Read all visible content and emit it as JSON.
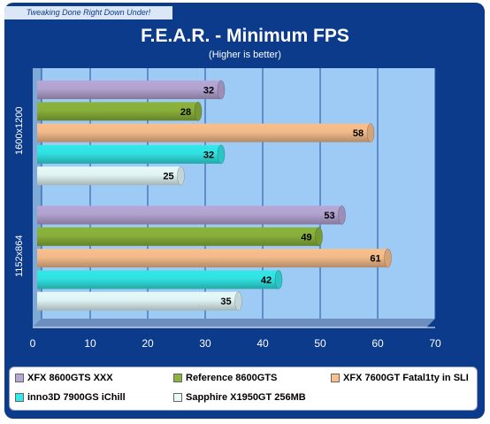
{
  "watermark": "Tweaking Done Right Down Under!",
  "chart_data": {
    "type": "bar",
    "orientation": "horizontal",
    "title": "F.E.A.R. - Minimum FPS",
    "subtitle": "(Higher is better)",
    "xlabel": "",
    "ylabel": "",
    "xlim": [
      0,
      70
    ],
    "xticks": [
      0,
      10,
      20,
      30,
      40,
      50,
      60,
      70
    ],
    "grid": true,
    "legend_position": "bottom",
    "categories": [
      "1600x1200",
      "1152x864"
    ],
    "series": [
      {
        "name": "XFX 8600GTS XXX",
        "color": "#b7a7d6",
        "values": [
          32,
          53
        ]
      },
      {
        "name": "Reference 8600GTS",
        "color": "#8cb43c",
        "values": [
          28,
          49
        ]
      },
      {
        "name": "XFX 7600GT Fatal1ty in SLI",
        "color": "#f9c08d",
        "values": [
          58,
          61
        ]
      },
      {
        "name": "inno3D 7900GS iChill",
        "color": "#33e8e8",
        "values": [
          32,
          42
        ]
      },
      {
        "name": "Sapphire X1950GT 256MB",
        "color": "#e6fafa",
        "values": [
          25,
          35
        ]
      }
    ]
  }
}
